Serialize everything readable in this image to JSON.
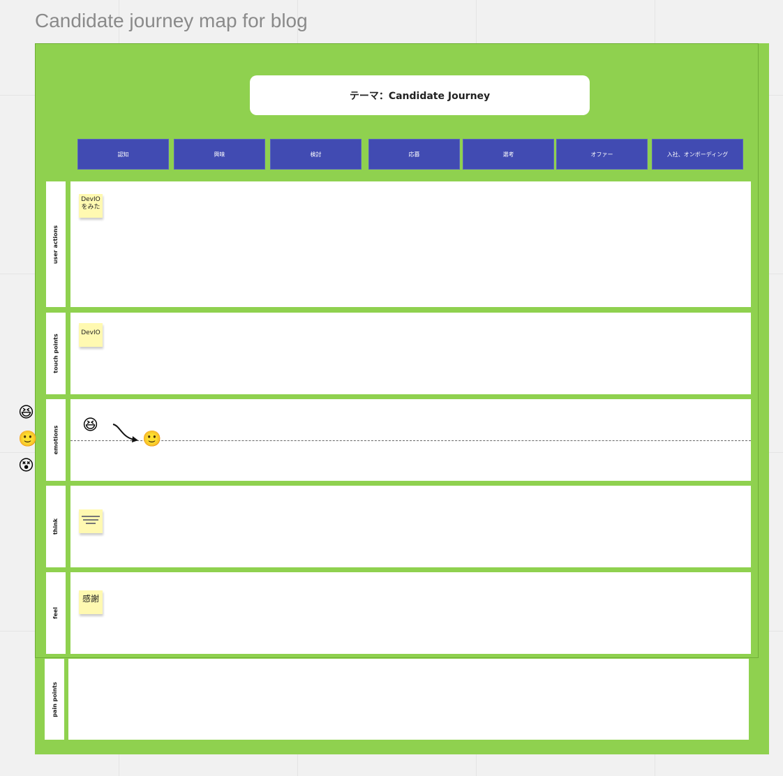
{
  "board_title": "Candidate journey map for blog",
  "theme": "テーマ：Candidate Journey",
  "stages": [
    "認知",
    "興味",
    "検討",
    "応募",
    "選考",
    "オファー",
    "入社、オンボーディング"
  ],
  "rows": [
    "user actions",
    "touch points",
    "emotions",
    "think",
    "feel",
    "pain points"
  ],
  "stickies": {
    "user_actions": "DevIO をみた",
    "touch_points": "DevIO",
    "feel": "感謝"
  },
  "emotion_scale": [
    "laughing-face",
    "slightly-smiling-face",
    "dizzy-face"
  ],
  "emotion_points": [
    "laughing-face",
    "slightly-smiling-face"
  ],
  "colors": {
    "board": "#8fd14f",
    "stage": "#414bb2",
    "sticky": "#fff9b1"
  }
}
